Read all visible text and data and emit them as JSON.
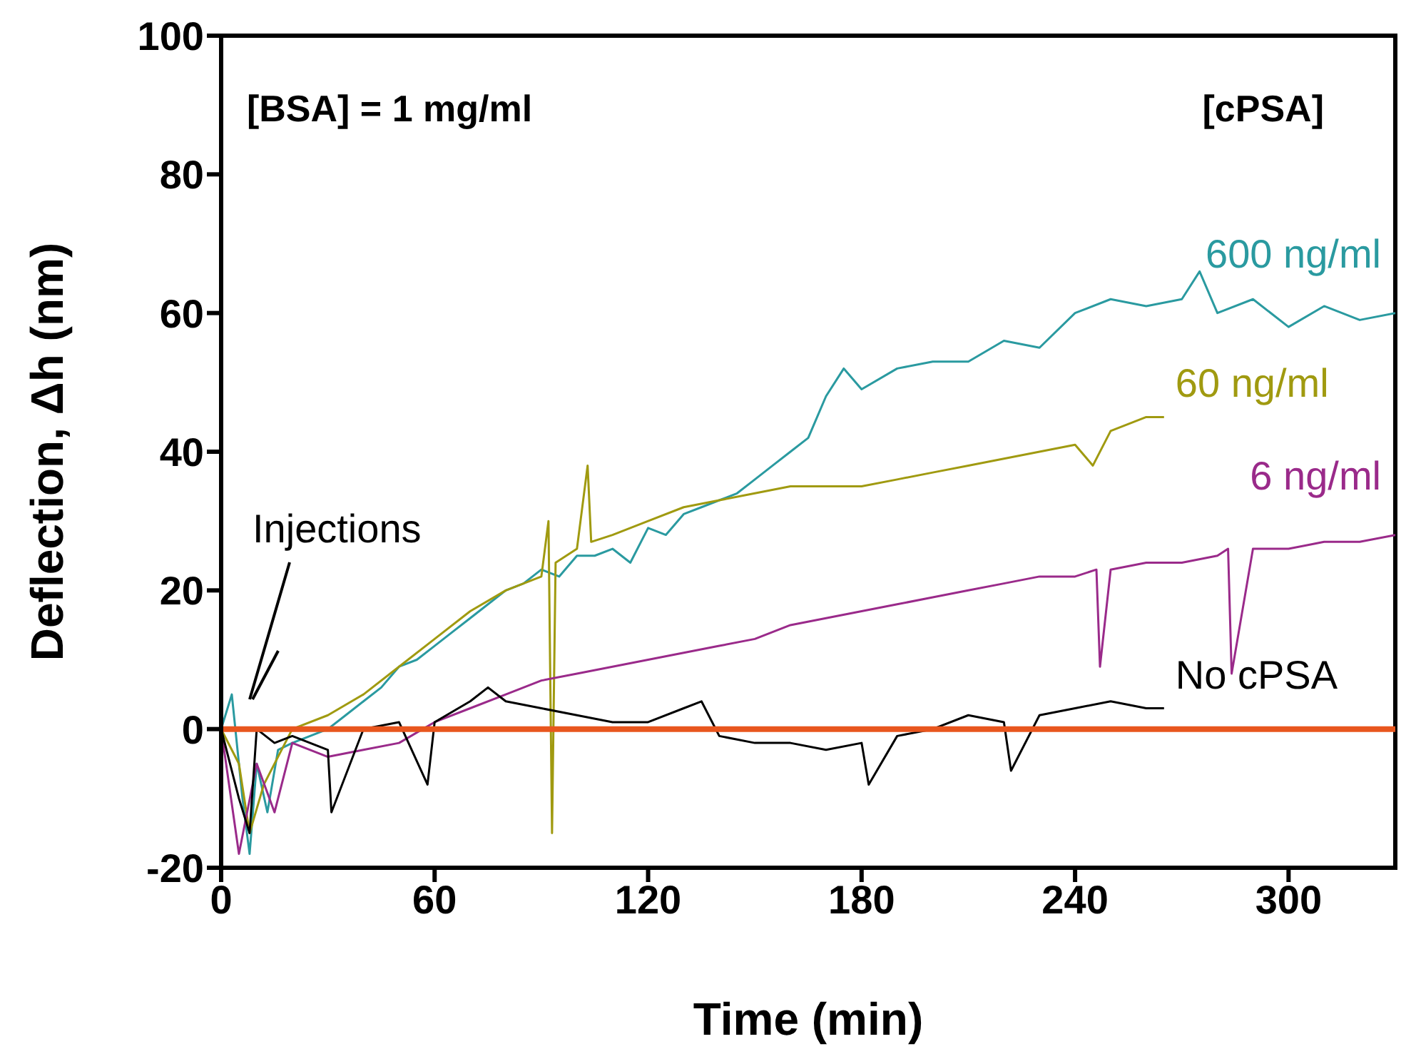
{
  "chart_data": {
    "type": "line",
    "xlabel": "Time (min)",
    "ylabel": "Deflection, Δh (nm)",
    "xlim": [
      0,
      330
    ],
    "xticks": [
      0,
      60,
      120,
      180,
      240,
      300
    ],
    "ylim": [
      -20,
      100
    ],
    "yticks": [
      -20,
      0,
      20,
      40,
      60,
      80,
      100
    ],
    "grid": false,
    "legend": false,
    "line_style": "solid",
    "series": [
      {
        "name": "600 ng/ml",
        "color": "#2a9aa0",
        "x": [
          0,
          3,
          6,
          8,
          10,
          13,
          16,
          20,
          25,
          30,
          35,
          40,
          45,
          50,
          55,
          60,
          65,
          70,
          75,
          80,
          85,
          90,
          95,
          100,
          105,
          110,
          115,
          120,
          125,
          130,
          135,
          140,
          145,
          150,
          155,
          160,
          165,
          170,
          175,
          180,
          190,
          200,
          210,
          220,
          230,
          240,
          250,
          260,
          270,
          275,
          280,
          290,
          300,
          310,
          320,
          330
        ],
        "values": [
          0,
          5,
          -10,
          -18,
          -5,
          -12,
          -3,
          -2,
          -1,
          0,
          2,
          4,
          6,
          9,
          10,
          12,
          14,
          16,
          18,
          20,
          21,
          23,
          22,
          25,
          25,
          26,
          24,
          29,
          28,
          31,
          32,
          33,
          34,
          36,
          38,
          40,
          42,
          48,
          52,
          49,
          52,
          53,
          53,
          56,
          55,
          60,
          62,
          61,
          62,
          66,
          60,
          62,
          58,
          61,
          59,
          60
        ]
      },
      {
        "name": "60 ng/ml",
        "color": "#a09a10",
        "x": [
          0,
          5,
          8,
          12,
          20,
          30,
          40,
          50,
          60,
          70,
          80,
          90,
          92,
          93,
          94,
          100,
          103,
          104,
          110,
          120,
          130,
          140,
          150,
          160,
          170,
          180,
          190,
          200,
          210,
          220,
          230,
          240,
          245,
          250,
          255,
          260,
          265
        ],
        "values": [
          0,
          -5,
          -15,
          -8,
          0,
          2,
          5,
          9,
          13,
          17,
          20,
          22,
          30,
          -15,
          24,
          26,
          38,
          27,
          28,
          30,
          32,
          33,
          34,
          35,
          35,
          35,
          36,
          37,
          38,
          39,
          40,
          41,
          38,
          43,
          44,
          45,
          45
        ]
      },
      {
        "name": "6 ng/ml",
        "color": "#9a2a8a",
        "x": [
          0,
          5,
          10,
          15,
          20,
          30,
          40,
          50,
          60,
          70,
          80,
          90,
          100,
          110,
          120,
          130,
          140,
          150,
          160,
          170,
          180,
          190,
          200,
          210,
          220,
          230,
          240,
          246,
          247,
          250,
          260,
          270,
          280,
          283,
          284,
          290,
          300,
          310,
          320,
          330
        ],
        "values": [
          0,
          -18,
          -5,
          -12,
          -2,
          -4,
          -3,
          -2,
          1,
          3,
          5,
          7,
          8,
          9,
          10,
          11,
          12,
          13,
          15,
          16,
          17,
          18,
          19,
          20,
          21,
          22,
          22,
          23,
          9,
          23,
          24,
          24,
          25,
          26,
          8,
          26,
          26,
          27,
          27,
          28
        ]
      },
      {
        "name": "No cPSA",
        "color": "#000000",
        "x": [
          0,
          5,
          8,
          10,
          15,
          20,
          30,
          31,
          40,
          50,
          58,
          60,
          70,
          75,
          80,
          90,
          100,
          110,
          120,
          130,
          135,
          140,
          150,
          160,
          170,
          180,
          182,
          190,
          200,
          210,
          220,
          222,
          230,
          240,
          250,
          260,
          265
        ],
        "values": [
          0,
          -10,
          -15,
          0,
          -2,
          -1,
          -3,
          -12,
          0,
          1,
          -8,
          1,
          4,
          6,
          4,
          3,
          2,
          1,
          1,
          3,
          4,
          -1,
          -2,
          -2,
          -3,
          -2,
          -8,
          -1,
          0,
          2,
          1,
          -6,
          2,
          3,
          4,
          3,
          3
        ]
      }
    ],
    "ref_lines": [
      {
        "axis": "y",
        "value": 0,
        "color": "#e8561e"
      }
    ],
    "annotations": [
      "[BSA] = 1 mg/ml",
      "[cPSA]",
      "Injections"
    ]
  }
}
